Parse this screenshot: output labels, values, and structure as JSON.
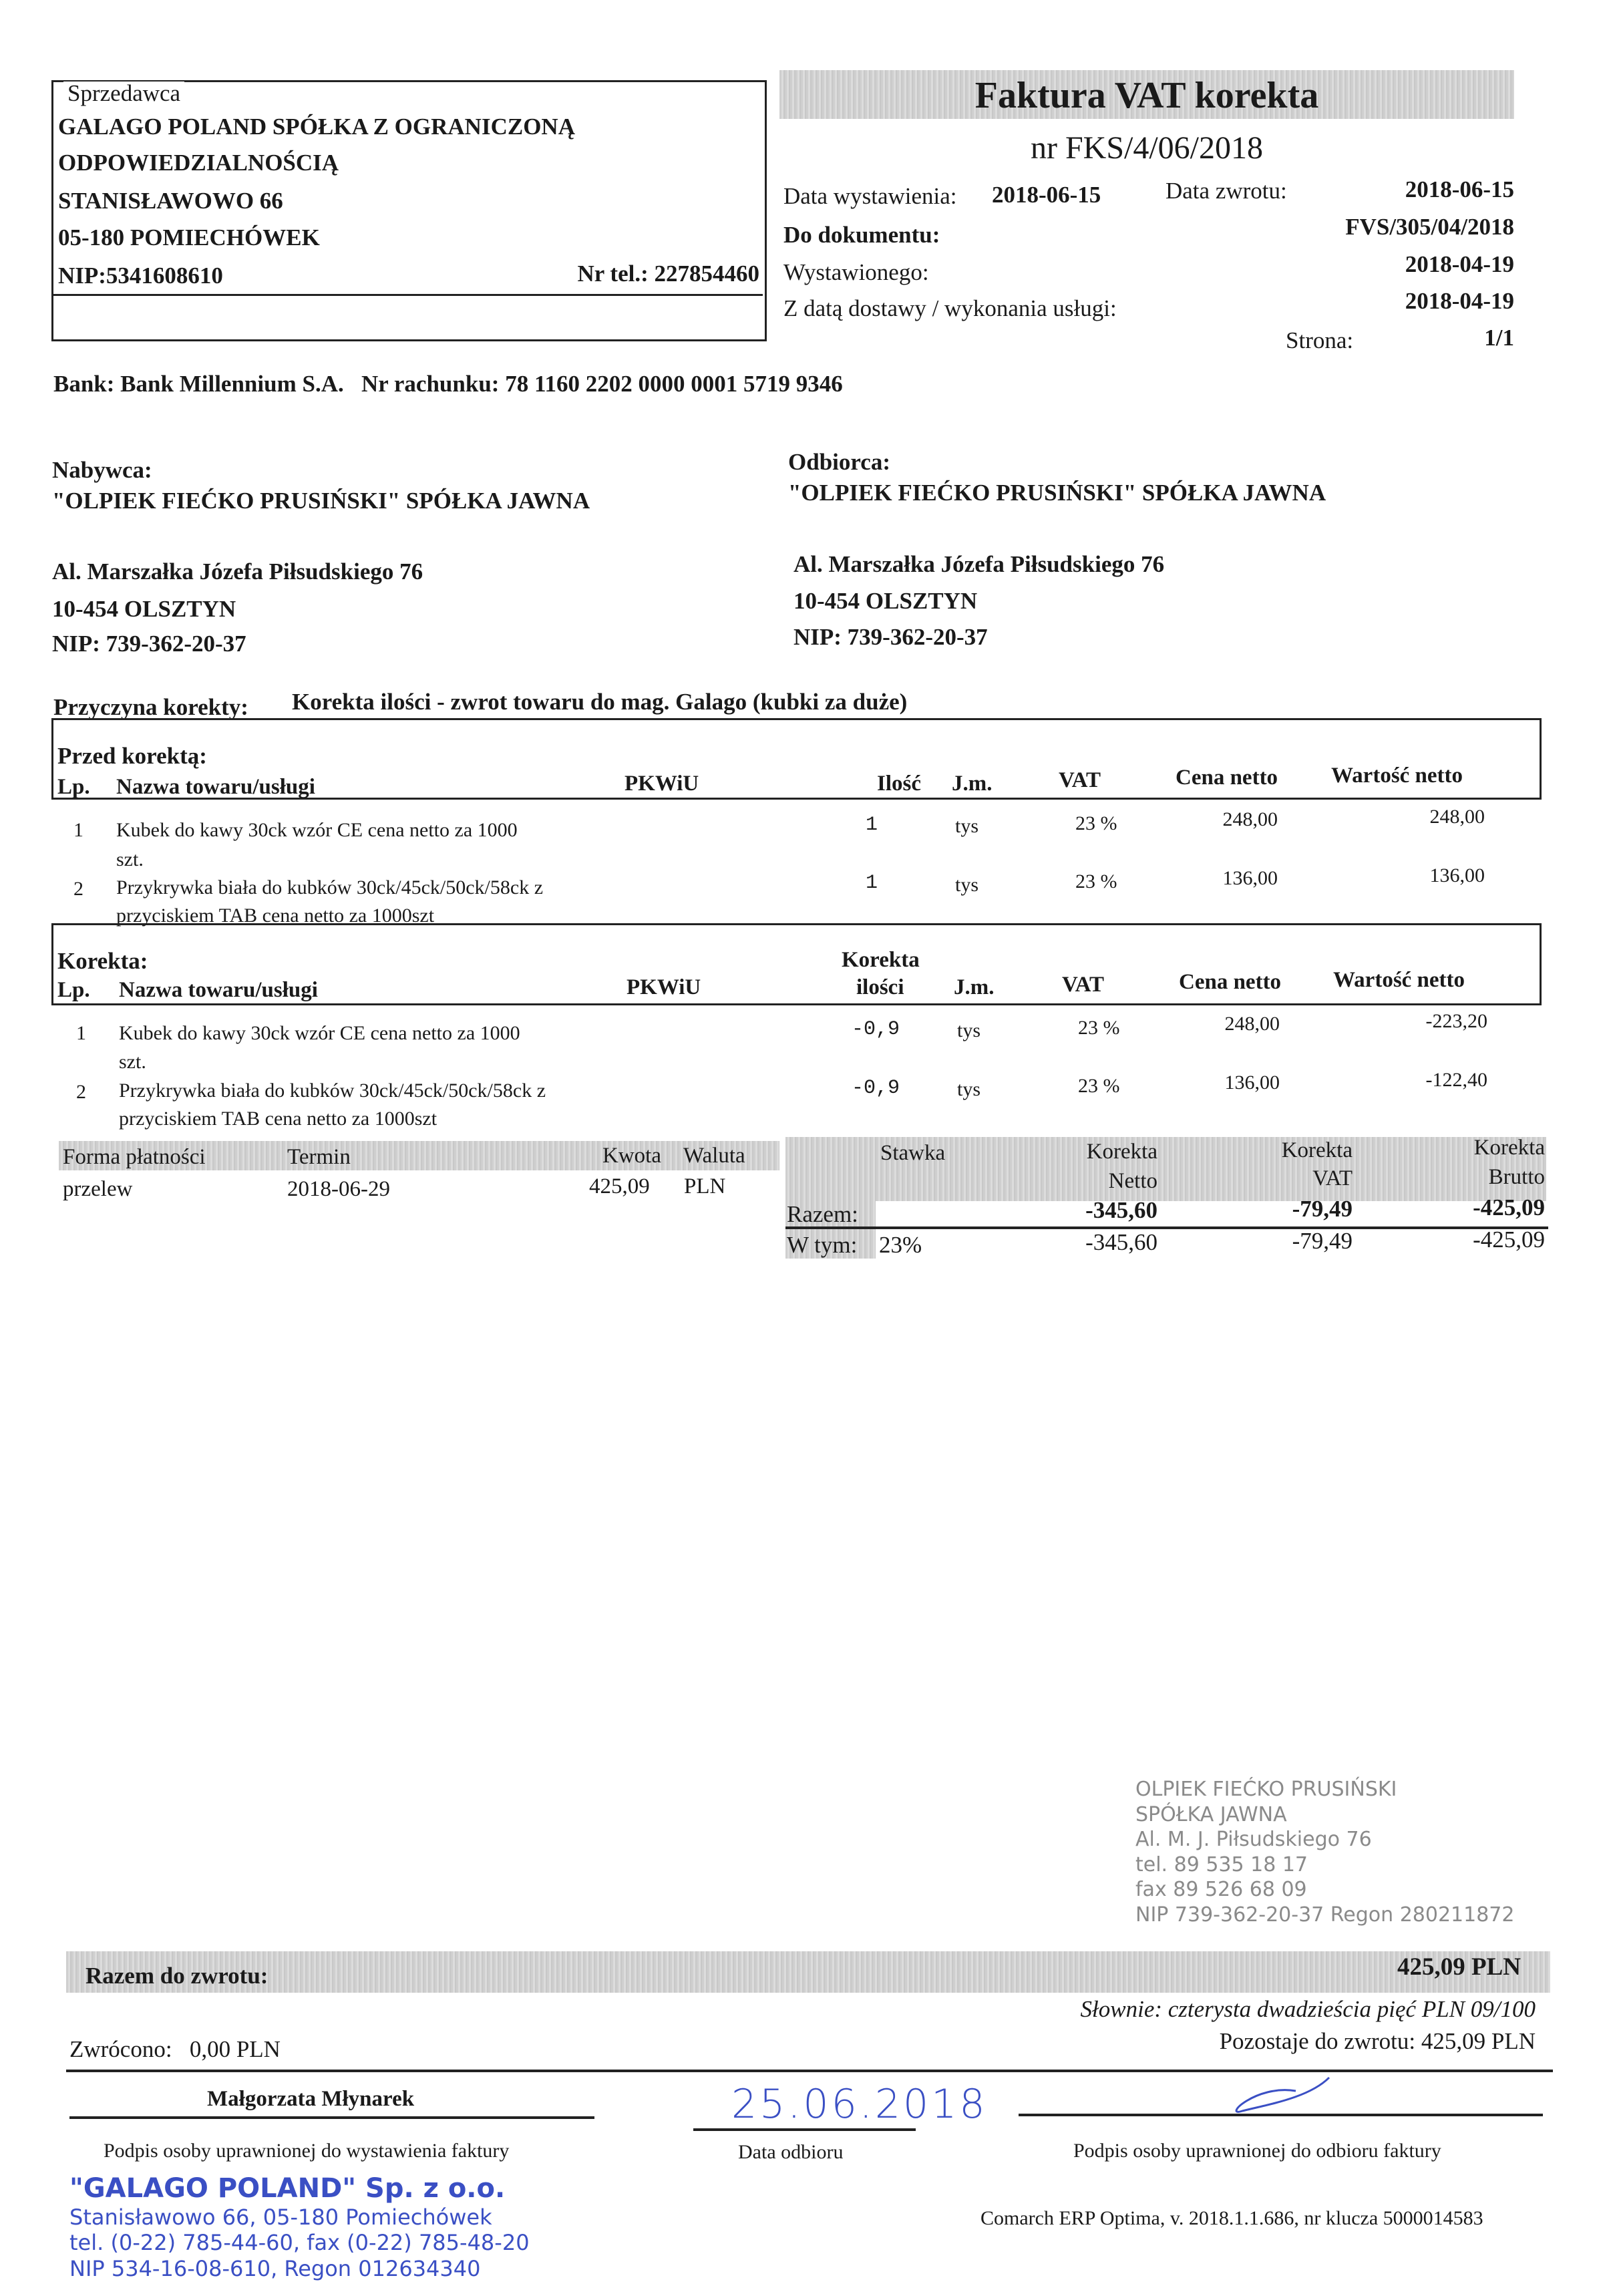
{
  "seller": {
    "label": "Sprzedawca",
    "lines": [
      "GALAGO POLAND SPÓŁKA Z OGRANICZONĄ",
      "ODPOWIEDZIALNOŚCIĄ",
      "STANISŁAWOWO 66",
      "05-180 POMIECHÓWEK"
    ],
    "nip": "NIP:5341608610",
    "phone": "Nr tel.: 227854460"
  },
  "header": {
    "title": "Faktura VAT korekta",
    "number": "nr FKS/4/06/2018",
    "issue_label": "Data wystawienia:",
    "issue_date": "2018-06-15",
    "return_label": "Data zwrotu:",
    "return_date": "2018-06-15",
    "doc_label": "Do dokumentu:",
    "doc_value": "FVS/305/04/2018",
    "issued_label": "Wystawionego:",
    "issued_value": "2018-04-19",
    "delivery_label": "Z datą dostawy / wykonania usługi:",
    "delivery_value": "2018-04-19",
    "page_label": "Strona:",
    "page_value": "1/1"
  },
  "bank": "Bank: Bank Millennium S.A.   Nr rachunku: 78 1160 2202 0000 0001 5719 9346",
  "buyer": {
    "label": "Nabywca:",
    "name": "\"OLPIEK FIEĆKO PRUSIŃSKI\" SPÓŁKA JAWNA",
    "address": "Al. Marszałka Józefa Piłsudskiego 76",
    "city": "10-454 OLSZTYN",
    "nip": "NIP: 739-362-20-37"
  },
  "recipient": {
    "label": "Odbiorca:",
    "name": "\"OLPIEK FIEĆKO PRUSIŃSKI\" SPÓŁKA JAWNA",
    "address": "Al. Marszałka Józefa Piłsudskiego 76",
    "city": "10-454 OLSZTYN",
    "nip": "NIP: 739-362-20-37"
  },
  "reason": {
    "label": "Przyczyna korekty:",
    "value": "Korekta ilości - zwrot towaru do mag. Galago (kubki za duże)"
  },
  "before": {
    "title": "Przed korektą:",
    "headers": {
      "lp": "Lp.",
      "name": "Nazwa towaru/usługi",
      "pkwiu": "PKWiU",
      "qty": "Ilość",
      "unit": "J.m.",
      "vat": "VAT",
      "price": "Cena netto",
      "value": "Wartość netto"
    },
    "rows": [
      {
        "lp": "1",
        "name1": "Kubek do kawy 30ck wzór CE cena netto za 1000",
        "name2": "szt.",
        "qty": "1",
        "unit": "tys",
        "vat": "23 %",
        "price": "248,00",
        "value": "248,00"
      },
      {
        "lp": "2",
        "name1": "Przykrywka biała do kubków 30ck/45ck/50ck/58ck z",
        "name2": "przyciskiem TAB cena netto za 1000szt",
        "qty": "1",
        "unit": "tys",
        "vat": "23 %",
        "price": "136,00",
        "value": "136,00"
      }
    ]
  },
  "correction": {
    "title": "Korekta:",
    "headers": {
      "lp": "Lp.",
      "name": "Nazwa towaru/usługi",
      "pkwiu": "PKWiU",
      "qty1": "Korekta",
      "qty2": "ilości",
      "unit": "J.m.",
      "vat": "VAT",
      "price": "Cena netto",
      "value": "Wartość netto"
    },
    "rows": [
      {
        "lp": "1",
        "name1": "Kubek do kawy 30ck wzór CE cena netto za 1000",
        "name2": "szt.",
        "qty": "-0,9",
        "unit": "tys",
        "vat": "23 %",
        "price": "248,00",
        "value": "-223,20"
      },
      {
        "lp": "2",
        "name1": "Przykrywka biała do kubków 30ck/45ck/50ck/58ck z",
        "name2": "przyciskiem TAB cena netto za 1000szt",
        "qty": "-0,9",
        "unit": "tys",
        "vat": "23 %",
        "price": "136,00",
        "value": "-122,40"
      }
    ]
  },
  "payment": {
    "headers": {
      "method": "Forma płatności",
      "due": "Termin",
      "amount": "Kwota",
      "currency": "Waluta"
    },
    "method": "przelew",
    "due": "2018-06-29",
    "amount": "425,09",
    "currency": "PLN"
  },
  "summary": {
    "h_rate": "Stawka",
    "h_net1": "Korekta",
    "h_net2": "Netto",
    "h_vat1": "Korekta",
    "h_vat2": "VAT",
    "h_gross1": "Korekta",
    "h_gross2": "Brutto",
    "total_label": "Razem:",
    "total_net": "-345,60",
    "total_vat": "-79,49",
    "total_gross": "-425,09",
    "incl_label": "W tym:",
    "incl_rate": "23%",
    "incl_net": "-345,60",
    "incl_vat": "-79,49",
    "incl_gross": "-425,09"
  },
  "refund": {
    "label": "Razem do zwrotu:",
    "amount": "425,09 PLN",
    "words": "Słownie: czterysta dwadzieścia pięć PLN 09/100",
    "remaining": "Pozostaje do zwrotu: 425,09 PLN",
    "returned": "Zwrócono:   0,00 PLN"
  },
  "signatures": {
    "issuer_name": "Małgorzata Młynarek",
    "issuer_label": "Podpis osoby uprawnionej do wystawienia faktury",
    "date_handwritten": "25.06.2018",
    "date_label": "Data odbioru",
    "receiver_label": "Podpis osoby uprawnionej do odbioru faktury"
  },
  "stamps": {
    "seller": [
      "\"GALAGO POLAND\" Sp. z o.o.",
      "Stanisławowo 66, 05-180 Pomiechówek",
      "tel. (0-22) 785-44-60, fax (0-22) 785-48-20",
      "NIP 534-16-08-610, Regon 012634340"
    ],
    "buyer": [
      "OLPIEK FIEĆKO PRUSIŃSKI",
      "SPÓŁKA JAWNA",
      "Al. M. J. Piłsudskiego 76",
      "tel. 89 535 18 17",
      "fax 89 526 68 09",
      "NIP 739-362-20-37 Regon 280211872"
    ]
  },
  "footer": "Comarch ERP Optima, v. 2018.1.1.686, nr klucza 5000014583",
  "colors": {
    "stamp_blue": "#3a4fc4",
    "header_gray": "#d2d2d2"
  }
}
